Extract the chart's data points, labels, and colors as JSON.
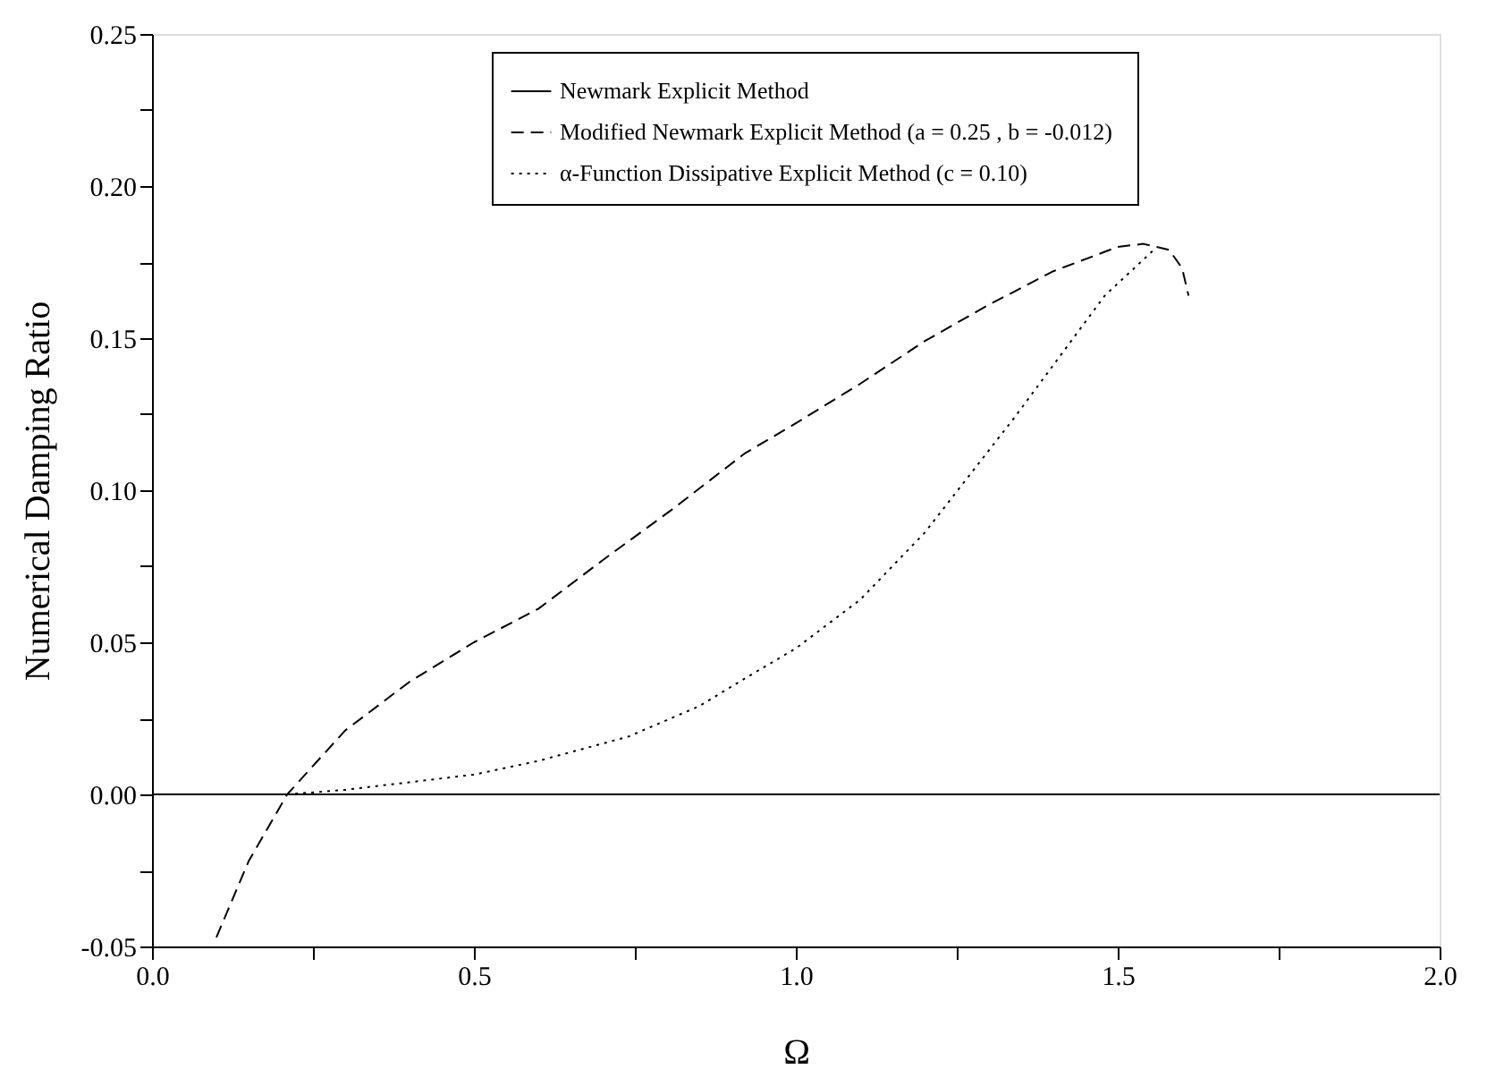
{
  "chart_data": {
    "type": "line",
    "xlabel": "Ω",
    "ylabel": "Numerical Damping Ratio",
    "xlim": [
      0,
      2
    ],
    "ylim": [
      -0.05,
      0.25
    ],
    "xticks": [
      {
        "value": 0,
        "label": "0.0"
      },
      {
        "value": 0.25,
        "label": null
      },
      {
        "value": 0.5,
        "label": "0.5"
      },
      {
        "value": 0.75,
        "label": null
      },
      {
        "value": 1,
        "label": "1.0"
      },
      {
        "value": 1.25,
        "label": null
      },
      {
        "value": 1.5,
        "label": "1.5"
      },
      {
        "value": 1.75,
        "label": null
      },
      {
        "value": 2,
        "label": "2.0"
      }
    ],
    "yticks": [
      {
        "value": -0.05,
        "label": "-0.05"
      },
      {
        "value": -0.025,
        "label": null
      },
      {
        "value": 0,
        "label": "0.00"
      },
      {
        "value": 0.025,
        "label": null
      },
      {
        "value": 0.05,
        "label": "0.05"
      },
      {
        "value": 0.075,
        "label": null
      },
      {
        "value": 0.1,
        "label": "0.10"
      },
      {
        "value": 0.125,
        "label": null
      },
      {
        "value": 0.15,
        "label": "0.15"
      },
      {
        "value": 0.175,
        "label": null
      },
      {
        "value": 0.2,
        "label": "0.20"
      },
      {
        "value": 0.225,
        "label": null
      },
      {
        "value": 0.25,
        "label": "0.25"
      }
    ],
    "grid": false,
    "legend": "top",
    "marker": "none",
    "series": [
      {
        "name": "Newmark Explicit Method",
        "color": "#000000",
        "line_style": "solid",
        "x": [
          0,
          2
        ],
        "values": [
          0,
          0
        ]
      },
      {
        "name": "Modified Newmark Explicit Method  (a = 0.25 , b = -0.012)",
        "color": "#000000",
        "line_style": "dashed",
        "x": [
          0.1,
          0.15,
          0.21,
          0.3,
          0.4,
          0.5,
          0.6,
          0.7,
          0.81,
          0.92,
          1.0,
          1.1,
          1.2,
          1.3,
          1.4,
          1.5,
          1.54,
          1.58,
          1.6,
          1.61
        ],
        "values": [
          -0.047,
          -0.022,
          0,
          0.021,
          0.037,
          0.05,
          0.061,
          0.077,
          0.094,
          0.112,
          0.122,
          0.135,
          0.149,
          0.161,
          0.172,
          0.18,
          0.181,
          0.179,
          0.173,
          0.164
        ]
      },
      {
        "name": "α-Function Dissipative Explicit Method  (c = 0.10)",
        "color": "#000000",
        "line_style": "dotted",
        "x": [
          0.21,
          0.3,
          0.4,
          0.5,
          0.6,
          0.74,
          0.85,
          0.92,
          1.0,
          1.1,
          1.2,
          1.34,
          1.48,
          1.556
        ],
        "values": [
          0,
          0.0015,
          0.004,
          0.0065,
          0.011,
          0.019,
          0.029,
          0.038,
          0.048,
          0.064,
          0.086,
          0.124,
          0.164,
          0.179
        ]
      }
    ]
  }
}
